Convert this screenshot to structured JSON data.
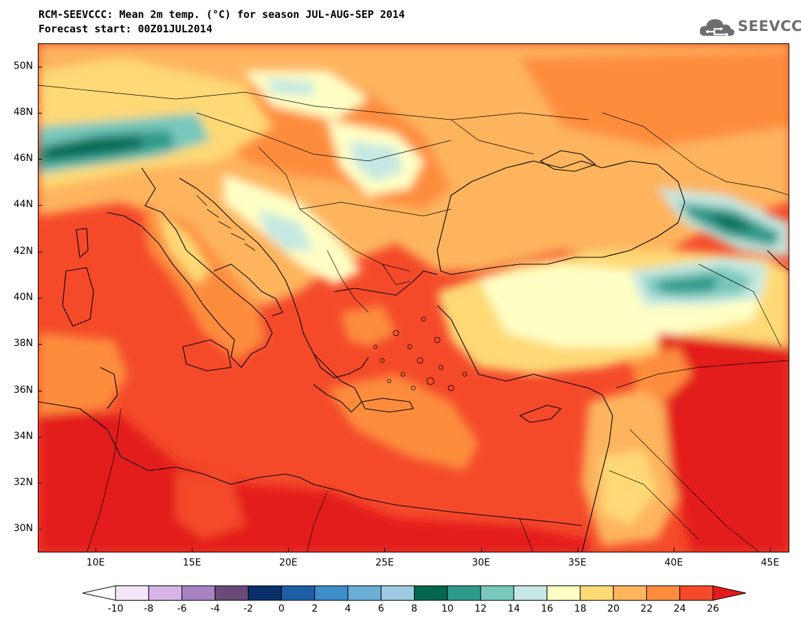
{
  "title_line1": "RCM-SEEVCCC: Mean 2m temp. (°C) for season JUL-AUG-SEP 2014",
  "title_line2": "Forecast start: 00Z01JUL2014",
  "logo_text": "SEEVCCC",
  "logo_icon": "cloud-icon",
  "map_extent": {
    "lon": [
      7,
      46
    ],
    "lat": [
      29,
      51
    ]
  },
  "lat_labels": [
    {
      "lat": 50,
      "label": "50N"
    },
    {
      "lat": 48,
      "label": "48N"
    },
    {
      "lat": 46,
      "label": "46N"
    },
    {
      "lat": 44,
      "label": "44N"
    },
    {
      "lat": 42,
      "label": "42N"
    },
    {
      "lat": 40,
      "label": "40N"
    },
    {
      "lat": 38,
      "label": "38N"
    },
    {
      "lat": 36,
      "label": "36N"
    },
    {
      "lat": 34,
      "label": "34N"
    },
    {
      "lat": 32,
      "label": "32N"
    },
    {
      "lat": 30,
      "label": "30N"
    }
  ],
  "lon_labels": [
    {
      "lon": 10,
      "label": "10E"
    },
    {
      "lon": 15,
      "label": "15E"
    },
    {
      "lon": 20,
      "label": "20E"
    },
    {
      "lon": 25,
      "label": "25E"
    },
    {
      "lon": 30,
      "label": "30E"
    },
    {
      "lon": 35,
      "label": "35E"
    },
    {
      "lon": 40,
      "label": "40E"
    },
    {
      "lon": 45,
      "label": "45E"
    }
  ],
  "colorbar": {
    "ticks": [
      "-10",
      "-8",
      "-6",
      "-4",
      "-2",
      "0",
      "2",
      "4",
      "6",
      "8",
      "10",
      "12",
      "14",
      "16",
      "18",
      "20",
      "22",
      "24",
      "26"
    ],
    "under_color": "#ffffff",
    "over_color": "#e31a1c",
    "colors": [
      "#f2e6f7",
      "#d6b4e6",
      "#a883c2",
      "#6a4a78",
      "#08306b",
      "#1f5fa8",
      "#3d8ec9",
      "#6baed6",
      "#9ecae1",
      "#00684f",
      "#2e9a8a",
      "#78c8bb",
      "#c5e8e2",
      "#ffffc5",
      "#fed976",
      "#fdb45d",
      "#fd8d3c",
      "#f44a2a"
    ]
  }
}
